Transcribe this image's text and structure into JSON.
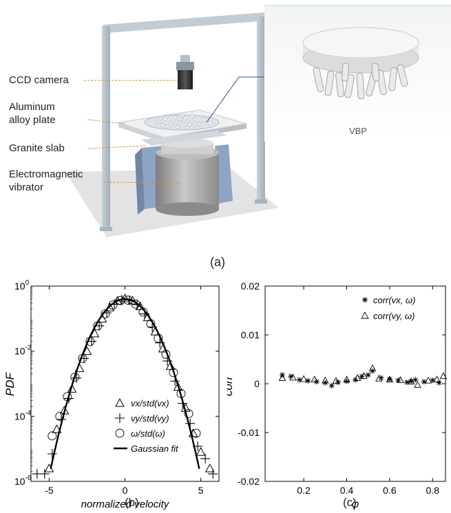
{
  "panel_a": {
    "labels": {
      "camera": "CCD camera",
      "plate_line1": "Aluminum",
      "plate_line2": "alloy plate",
      "slab": "Granite slab",
      "vibrator_line1": "Electromagnetic",
      "vibrator_line2": "vibrator",
      "inset": "VBP"
    },
    "caption": "(a)",
    "colors": {
      "frame": "#b9c4cc",
      "leader": "#e08a2a",
      "vibrator_blue": "#8aa0bf"
    }
  },
  "panel_b": {
    "caption": "(b)",
    "ylabel": "PDF",
    "xlabel": "normalized   velocity",
    "xticks": [
      "-5",
      "0",
      "5"
    ],
    "yticks": [
      {
        "base": "10",
        "exp": "0"
      },
      {
        "base": "10",
        "exp": "-2"
      },
      {
        "base": "10",
        "exp": "-4"
      },
      {
        "base": "10",
        "exp": "-6"
      }
    ],
    "legend": {
      "vx": "vx/std(vx)",
      "vy": "vy/std(vy)",
      "w": "ω/std(ω)",
      "fit": "Gaussian fit"
    }
  },
  "panel_c": {
    "caption": "(c)",
    "ylabel": "corr",
    "xlabel": "φ",
    "xticks": [
      "0.2",
      "0.4",
      "0.6",
      "0.8"
    ],
    "yticks": [
      "0.02",
      "0.01",
      "0",
      "-0.01",
      "-0.02"
    ],
    "legend": {
      "a": "corr(vx, ω)",
      "b": "corr(vy, ω)"
    }
  },
  "chart_data": [
    {
      "type": "scatter",
      "xlabel": "normalized velocity",
      "ylabel": "PDF",
      "xlim": [
        -6.2,
        6.2
      ],
      "ylim": [
        1e-06,
        1
      ],
      "yscale": "log",
      "series": [
        {
          "name": "vx/std(vx)",
          "marker": "triangle",
          "x": [
            -5.0,
            -4.5,
            -4.0,
            -3.5,
            -3.0,
            -2.5,
            -2.0,
            -1.5,
            -1.0,
            -0.5,
            0,
            0.5,
            1.0,
            1.5,
            2.0,
            2.5,
            3.0,
            3.5,
            4.0,
            4.5,
            5.0,
            5.6
          ],
          "y": [
            2.5e-06,
            4e-05,
            0.00015,
            0.0007,
            0.003,
            0.01,
            0.035,
            0.1,
            0.22,
            0.35,
            0.42,
            0.36,
            0.24,
            0.11,
            0.04,
            0.012,
            0.0035,
            0.0008,
            0.00018,
            3e-05,
            8e-06,
            2.5e-06
          ]
        },
        {
          "name": "vy/std(vy)",
          "marker": "plus",
          "x": [
            -5.8,
            -5.3,
            -4.8,
            -4.2,
            -3.7,
            -3.2,
            -2.7,
            -2.2,
            -1.7,
            -1.2,
            -0.7,
            -0.2,
            0.3,
            0.8,
            1.3,
            1.8,
            2.3,
            2.8,
            3.3,
            3.8,
            4.3,
            4.8,
            5.3,
            5.8
          ],
          "y": [
            1.7e-06,
            1.7e-06,
            7e-06,
            8e-05,
            0.00035,
            0.0015,
            0.006,
            0.02,
            0.06,
            0.15,
            0.28,
            0.38,
            0.37,
            0.27,
            0.14,
            0.055,
            0.018,
            0.005,
            0.0012,
            0.00025,
            6e-05,
            1.2e-05,
            5e-06,
            1.7e-06
          ]
        },
        {
          "name": "ω/std(ω)",
          "marker": "circle",
          "x": [
            -4.8,
            -4.3,
            -3.8,
            -3.3,
            -2.8,
            -2.3,
            -1.8,
            -1.3,
            -0.8,
            -0.3,
            0.2,
            0.7,
            1.2,
            1.7,
            2.2,
            2.7,
            3.2,
            3.7,
            4.2,
            4.7
          ],
          "y": [
            2.5e-05,
            0.0001,
            0.0004,
            0.0016,
            0.006,
            0.02,
            0.06,
            0.14,
            0.26,
            0.36,
            0.37,
            0.28,
            0.16,
            0.07,
            0.025,
            0.008,
            0.0022,
            0.0005,
            0.00012,
            3e-05
          ]
        },
        {
          "name": "Gaussian fit",
          "type": "line",
          "mean": 0,
          "std": 1
        }
      ]
    },
    {
      "type": "scatter",
      "xlabel": "φ",
      "ylabel": "corr",
      "xlim": [
        0.02,
        0.86
      ],
      "ylim": [
        -0.02,
        0.02
      ],
      "series": [
        {
          "name": "corr(vx, ω)",
          "marker": "star",
          "x": [
            0.1,
            0.14,
            0.18,
            0.22,
            0.26,
            0.3,
            0.33,
            0.36,
            0.4,
            0.44,
            0.47,
            0.5,
            0.52,
            0.56,
            0.6,
            0.64,
            0.68,
            0.7,
            0.72,
            0.76,
            0.8,
            0.83
          ],
          "y": [
            0.0018,
            0.0015,
            0.0008,
            0.0006,
            0.0004,
            0.0002,
            -0.0004,
            0.0003,
            0.0005,
            0.0008,
            0.0015,
            0.0018,
            0.0026,
            0.0012,
            0.0009,
            0.0007,
            0.0003,
            0.0005,
            0.0008,
            0.0004,
            0.0007,
            0.0002
          ]
        },
        {
          "name": "corr(vy, ω)",
          "marker": "triangle",
          "x": [
            0.1,
            0.15,
            0.2,
            0.25,
            0.3,
            0.35,
            0.4,
            0.45,
            0.48,
            0.52,
            0.55,
            0.6,
            0.65,
            0.7,
            0.73,
            0.78,
            0.82,
            0.85
          ],
          "y": [
            0.0012,
            0.0013,
            0.001,
            0.0009,
            0.0007,
            0.0006,
            0.0009,
            0.0012,
            0.0016,
            0.0032,
            0.0011,
            0.0009,
            0.0008,
            0.0005,
            -0.0002,
            0.0007,
            0.0009,
            0.0016
          ]
        }
      ]
    }
  ]
}
